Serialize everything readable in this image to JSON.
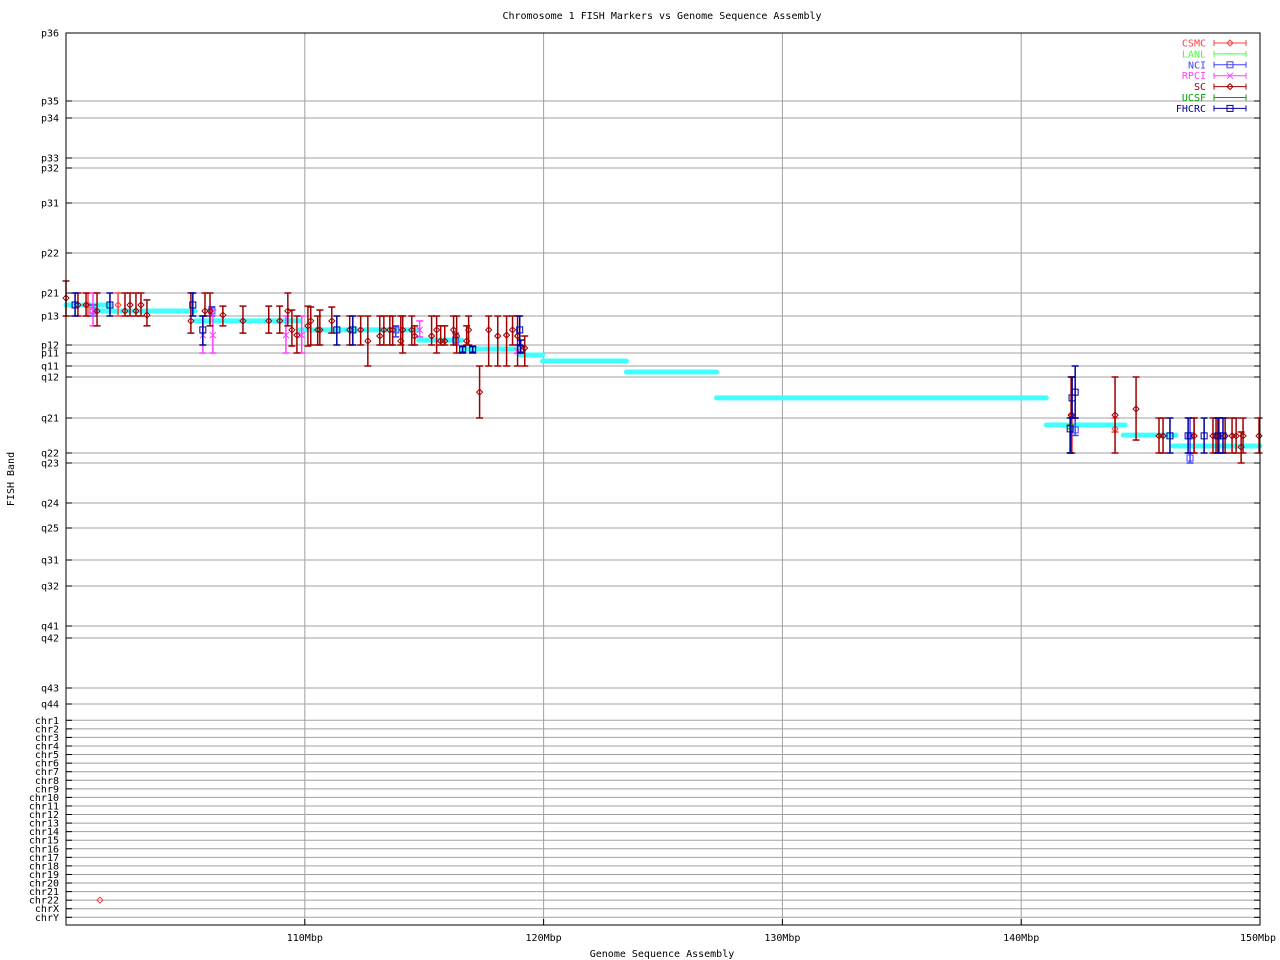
{
  "chart_data": {
    "type": "scatter",
    "title": "Chromosome 1 FISH Markers vs Genome Sequence Assembly",
    "xlabel": "Genome Sequence Assembly",
    "ylabel": "FISH Band",
    "xlim": [
      100,
      150
    ],
    "x_unit": "Mbp",
    "xticks": [
      {
        "value": 110,
        "label": "110Mbp"
      },
      {
        "value": 120,
        "label": "120Mbp"
      },
      {
        "value": 130,
        "label": "130Mbp"
      },
      {
        "value": 140,
        "label": "140Mbp"
      },
      {
        "value": 150,
        "label": "150Mbp"
      }
    ],
    "y_scale": "band index (0 = first tick label, increasing downward)",
    "ytick_labels": [
      "p36",
      "p35",
      "p34",
      "p33",
      "p32",
      "p31",
      "p22",
      "p21",
      "p13",
      "p12",
      "p11",
      "q11",
      "q12",
      "q21",
      "q22",
      "q23",
      "q24",
      "q25",
      "q31",
      "q32",
      "q41",
      "q42",
      "q43",
      "q44",
      "chr1",
      "chr2",
      "chr3",
      "chr4",
      "chr5",
      "chr6",
      "chr7",
      "chr8",
      "chr9",
      "chr10",
      "chr11",
      "chr12",
      "chr13",
      "chr14",
      "chr15",
      "chr16",
      "chr17",
      "chr18",
      "chr19",
      "chr20",
      "chr21",
      "chr22",
      "chrX",
      "chrY"
    ],
    "grid": true,
    "legend_position": "top-right",
    "assembly": {
      "color": "#40ffff",
      "segments": [
        {
          "x0": 100.0,
          "x1": 101.84,
          "y": 7.52
        },
        {
          "x0": 101.2,
          "x1": 105.4,
          "y": 7.78
        },
        {
          "x0": 105.4,
          "x1": 109.8,
          "y": 8.17
        },
        {
          "x0": 109.8,
          "x1": 114.77,
          "y": 8.48
        },
        {
          "x0": 114.77,
          "x1": 116.57,
          "y": 8.83
        },
        {
          "x0": 116.57,
          "x1": 119.0,
          "y": 9.5
        },
        {
          "x0": 119.0,
          "x1": 119.96,
          "y": 10.15
        },
        {
          "x0": 119.96,
          "x1": 123.47,
          "y": 10.62
        },
        {
          "x0": 123.47,
          "x1": 127.24,
          "y": 11.55
        },
        {
          "x0": 127.24,
          "x1": 141.05,
          "y": 12.51
        },
        {
          "x0": 141.05,
          "x1": 144.35,
          "y": 13.2
        },
        {
          "x0": 144.27,
          "x1": 146.49,
          "y": 13.49
        },
        {
          "x0": 146.36,
          "x1": 150.0,
          "y": 13.8
        }
      ]
    },
    "series": [
      {
        "name": "CSMC",
        "color": "#ff4040",
        "marker": "diamond",
        "points": [
          [
            100.92,
            7.52,
            7,
            8
          ],
          [
            102.18,
            7.52,
            7,
            8
          ],
          [
            142.13,
            12.93,
            12,
            14
          ],
          [
            143.93,
            13.31,
            13,
            13.4
          ],
          [
            147.24,
            13.51,
            13,
            14
          ],
          [
            101.42,
            45,
            45,
            45
          ]
        ]
      },
      {
        "name": "LANL",
        "color": "#40ff40",
        "marker": "plus",
        "points": []
      },
      {
        "name": "NCI",
        "color": "#4040ff",
        "marker": "square",
        "points": [
          [
            101.13,
            7.78,
            7.52,
            8
          ],
          [
            106.11,
            7.78,
            7.6,
            8
          ],
          [
            113.81,
            8.48,
            8.34,
            8.72
          ],
          [
            116.32,
            8.83,
            8.59,
            9
          ],
          [
            142.26,
            13.34,
            13,
            13.5
          ],
          [
            147.07,
            14.5,
            14,
            15
          ],
          [
            147.07,
            13.51,
            13,
            14
          ]
        ]
      },
      {
        "name": "RPCI",
        "color": "#ff40ff",
        "marker": "cross",
        "points": [
          [
            101.13,
            7.78,
            7,
            8.34
          ],
          [
            105.73,
            8.66,
            8,
            10
          ],
          [
            106.15,
            8.66,
            7.74,
            10
          ],
          [
            109.21,
            8.66,
            8,
            10
          ],
          [
            109.87,
            8.66,
            8,
            10
          ],
          [
            114.81,
            8.48,
            8.17,
            8.72
          ],
          [
            118.91,
            9.8,
            9,
            10
          ]
        ]
      },
      {
        "name": "SC",
        "color": "#a00000",
        "marker": "diamond",
        "points": [
          [
            100.0,
            7.22,
            6.7,
            8
          ],
          [
            100.5,
            7.52,
            7,
            8
          ],
          [
            100.84,
            7.52,
            7,
            8
          ],
          [
            101.3,
            7.78,
            7,
            8.34
          ],
          [
            102.47,
            7.78,
            7,
            8
          ],
          [
            102.68,
            7.52,
            7,
            8
          ],
          [
            102.93,
            7.78,
            7,
            8
          ],
          [
            103.14,
            7.52,
            7,
            8
          ],
          [
            103.39,
            7.96,
            7.3,
            8.34
          ],
          [
            105.23,
            8.17,
            7,
            8.59
          ],
          [
            105.82,
            7.78,
            7,
            8
          ],
          [
            106.03,
            7.78,
            7,
            8.34
          ],
          [
            106.57,
            7.96,
            7.57,
            8.34
          ],
          [
            107.41,
            8.17,
            7.57,
            8.59
          ],
          [
            108.49,
            8.17,
            7.57,
            8.59
          ],
          [
            108.95,
            8.17,
            7.57,
            8.59
          ],
          [
            109.29,
            7.78,
            7,
            8.34
          ],
          [
            109.46,
            8.48,
            7.74,
            9.13
          ],
          [
            109.67,
            8.66,
            8,
            10
          ],
          [
            110.13,
            8.34,
            7.57,
            9.13
          ],
          [
            110.25,
            8.17,
            7.61,
            9
          ],
          [
            110.54,
            8.48,
            8,
            9
          ],
          [
            110.63,
            8.48,
            7.74,
            9
          ],
          [
            111.13,
            8.17,
            7.61,
            8.59
          ],
          [
            111.88,
            8.48,
            8,
            9
          ],
          [
            112.34,
            8.48,
            8,
            9
          ],
          [
            112.64,
            8.86,
            8,
            11
          ],
          [
            113.14,
            8.69,
            8,
            9
          ],
          [
            113.31,
            8.48,
            8,
            9
          ],
          [
            113.56,
            8.48,
            8,
            9
          ],
          [
            113.68,
            8.48,
            8,
            9
          ],
          [
            114.02,
            8.86,
            8,
            9
          ],
          [
            114.1,
            8.48,
            8,
            10
          ],
          [
            114.48,
            8.48,
            8,
            9
          ],
          [
            114.6,
            8.69,
            8.34,
            9
          ],
          [
            115.31,
            8.69,
            8,
            9
          ],
          [
            115.52,
            8.48,
            8,
            10
          ],
          [
            115.69,
            8.86,
            8.34,
            9
          ],
          [
            115.86,
            8.86,
            8.34,
            9
          ],
          [
            116.23,
            8.48,
            8,
            9
          ],
          [
            116.36,
            8.69,
            8,
            10
          ],
          [
            116.78,
            8.86,
            8.34,
            9
          ],
          [
            116.86,
            8.48,
            8,
            9
          ],
          [
            117.32,
            12.37,
            11,
            13
          ],
          [
            117.7,
            8.48,
            8,
            11
          ],
          [
            118.08,
            8.69,
            8,
            11
          ],
          [
            118.45,
            8.66,
            8,
            11
          ],
          [
            118.7,
            8.48,
            8,
            9
          ],
          [
            118.91,
            8.69,
            8,
            11
          ],
          [
            119.21,
            9.38,
            8.69,
            11
          ],
          [
            142.09,
            12.93,
            12,
            14
          ],
          [
            143.93,
            12.93,
            12,
            14
          ],
          [
            144.81,
            12.78,
            12,
            13.63
          ],
          [
            145.77,
            13.51,
            13,
            14
          ],
          [
            145.94,
            13.51,
            13,
            14
          ],
          [
            147.24,
            13.51,
            13,
            14
          ],
          [
            148.03,
            13.51,
            13,
            14
          ],
          [
            148.16,
            13.51,
            13,
            14
          ],
          [
            148.28,
            13.51,
            13,
            14
          ],
          [
            148.54,
            13.51,
            13,
            14
          ],
          [
            148.83,
            13.51,
            13,
            14
          ],
          [
            149.0,
            13.51,
            13,
            14
          ],
          [
            149.21,
            13.83,
            13.4,
            15
          ],
          [
            149.29,
            13.51,
            13,
            14
          ],
          [
            149.96,
            13.51,
            13,
            14
          ]
        ]
      },
      {
        "name": "UCSF",
        "color": "#00a000",
        "marker": "plus",
        "points": [
          [
            142.05,
            13.31,
            13.2,
            14
          ]
        ]
      },
      {
        "name": "FHCRC",
        "color": "#0000a0",
        "marker": "square",
        "points": [
          [
            100.38,
            7.52,
            7,
            8
          ],
          [
            101.84,
            7.52,
            7,
            8
          ],
          [
            105.31,
            7.52,
            7,
            8
          ],
          [
            105.73,
            8.48,
            8,
            9
          ],
          [
            111.34,
            8.48,
            8,
            9
          ],
          [
            112.01,
            8.48,
            8,
            9
          ],
          [
            116.61,
            9.5,
            9.2,
            10
          ],
          [
            117.03,
            9.5,
            9.2,
            10
          ],
          [
            119.0,
            8.48,
            8,
            9
          ],
          [
            119.04,
            9.5,
            8.83,
            10
          ],
          [
            142.13,
            12.51,
            12,
            13
          ],
          [
            142.26,
            12.37,
            11,
            13
          ],
          [
            142.05,
            13.31,
            13,
            14
          ],
          [
            146.23,
            13.51,
            13,
            14
          ],
          [
            146.99,
            13.51,
            13,
            14
          ],
          [
            147.66,
            13.51,
            13,
            14
          ],
          [
            148.24,
            13.51,
            13,
            14
          ],
          [
            148.45,
            13.51,
            13,
            14
          ]
        ]
      }
    ]
  }
}
